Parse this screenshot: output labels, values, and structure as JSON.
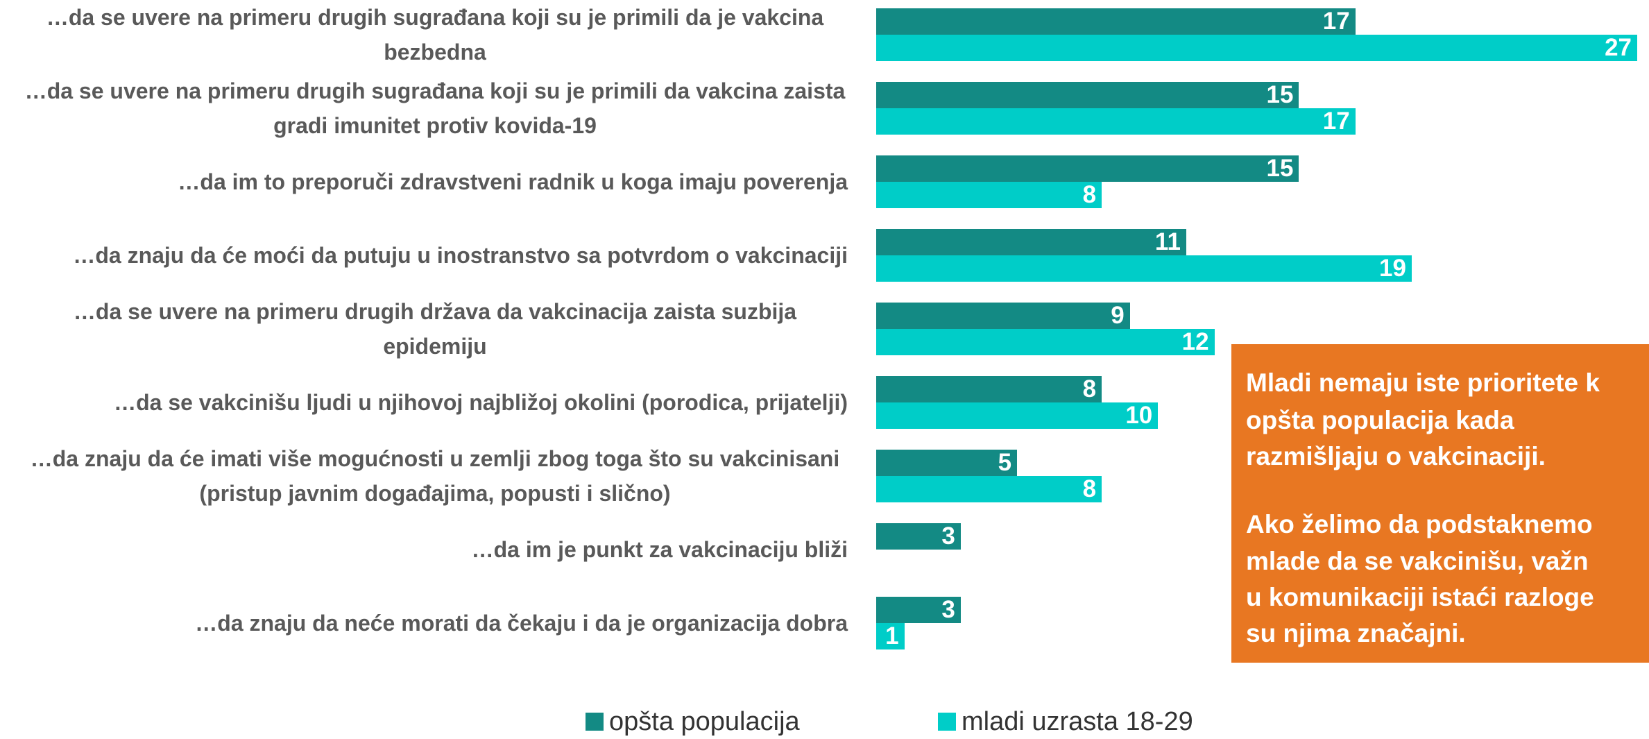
{
  "chart_data": {
    "type": "bar",
    "orientation": "horizontal",
    "categories": [
      "…da se uvere na primeru drugih sugrađana koji su je primili da je vakcina bezbedna",
      "…da se uvere na primeru drugih sugrađana koji su je primili da vakcina zaista gradi imunitet protiv kovida-19",
      "…da im to preporuči zdravstveni radnik u koga imaju poverenja",
      "…da znaju da će moći da putuju u inostranstvo sa potvrdom o vakcinaciji",
      "…da se uvere na primeru drugih država da vakcinacija zaista suzbija epidemiju",
      "…da se vakcinišu ljudi u njihovoj najbližoj okolini (porodica, prijatelji)",
      "…da znaju da će imati više mogućnosti u zemlji zbog toga što su vakcinisani (pristup javnim događajima, popusti i slično)",
      "…da im je punkt za vakcinaciju bliži",
      "…da znaju da neće morati da čekaju i da je organizacija dobra"
    ],
    "series": [
      {
        "name": "opšta populacija",
        "color": "#138a84",
        "values": [
          17,
          15,
          15,
          11,
          9,
          8,
          5,
          3,
          3
        ]
      },
      {
        "name": "mladi uzrasta 18-29",
        "color": "#00cdc8",
        "values": [
          27,
          17,
          8,
          19,
          12,
          10,
          8,
          null,
          1
        ]
      }
    ],
    "legend": "bottom",
    "annotation": {
      "color": "#e87722",
      "lines": [
        "Mladi nemaju iste prioritete k",
        "opšta populacija kada",
        "razmišljaju o vakcinaciji.",
        "Ako želimo da podstaknemo",
        "mlade da se vakcinišu, važn",
        "u komunikaciji istaći razloge",
        "su njima značajni."
      ]
    }
  }
}
